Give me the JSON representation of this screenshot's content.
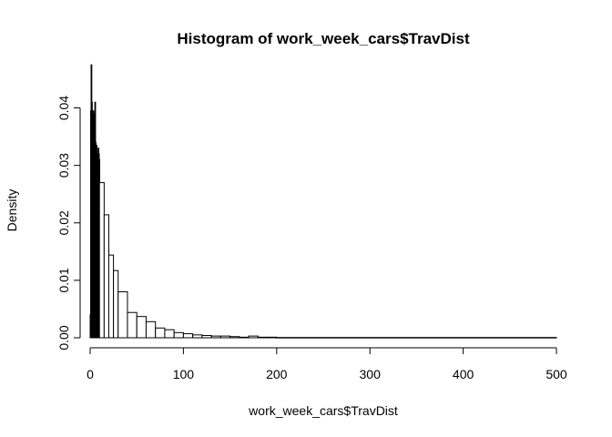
{
  "chart_data": {
    "type": "bar",
    "title": "Histogram of work_week_cars$TravDist",
    "xlabel": "work_week_cars$TravDist",
    "ylabel": "Density",
    "xlim": [
      0,
      500
    ],
    "ylim": [
      0,
      0.045
    ],
    "x_ticks": [
      0,
      100,
      200,
      300,
      400,
      500
    ],
    "y_ticks": [
      0.0,
      0.01,
      0.02,
      0.03,
      0.04
    ],
    "x_tick_labels": [
      "0",
      "100",
      "200",
      "300",
      "400",
      "500"
    ],
    "y_tick_labels": [
      "0.00",
      "0.01",
      "0.02",
      "0.03",
      "0.04"
    ],
    "fine_bins": {
      "width": 0.5,
      "values": [
        0.004,
        0.0395,
        0.0475,
        0.041,
        0.0395,
        0.038,
        0.0395,
        0.039,
        0.036,
        0.034,
        0.041,
        0.034,
        0.033,
        0.0335,
        0.032,
        0.03,
        0.029,
        0.033,
        0.032,
        0.031
      ]
    },
    "bins": {
      "breaks": [
        10,
        15,
        20,
        25,
        30,
        40,
        50,
        60,
        70,
        80,
        90,
        100,
        110,
        120,
        130,
        140,
        150,
        160,
        170,
        180,
        190,
        200,
        500
      ],
      "values": [
        0.027,
        0.0214,
        0.0144,
        0.0117,
        0.008,
        0.0044,
        0.0037,
        0.0028,
        0.0017,
        0.0014,
        0.0009,
        0.0007,
        0.0005,
        0.0004,
        0.0003,
        0.0003,
        0.0002,
        0.0001,
        0.0003,
        0.0001,
        0.0001,
        5e-05
      ]
    }
  }
}
